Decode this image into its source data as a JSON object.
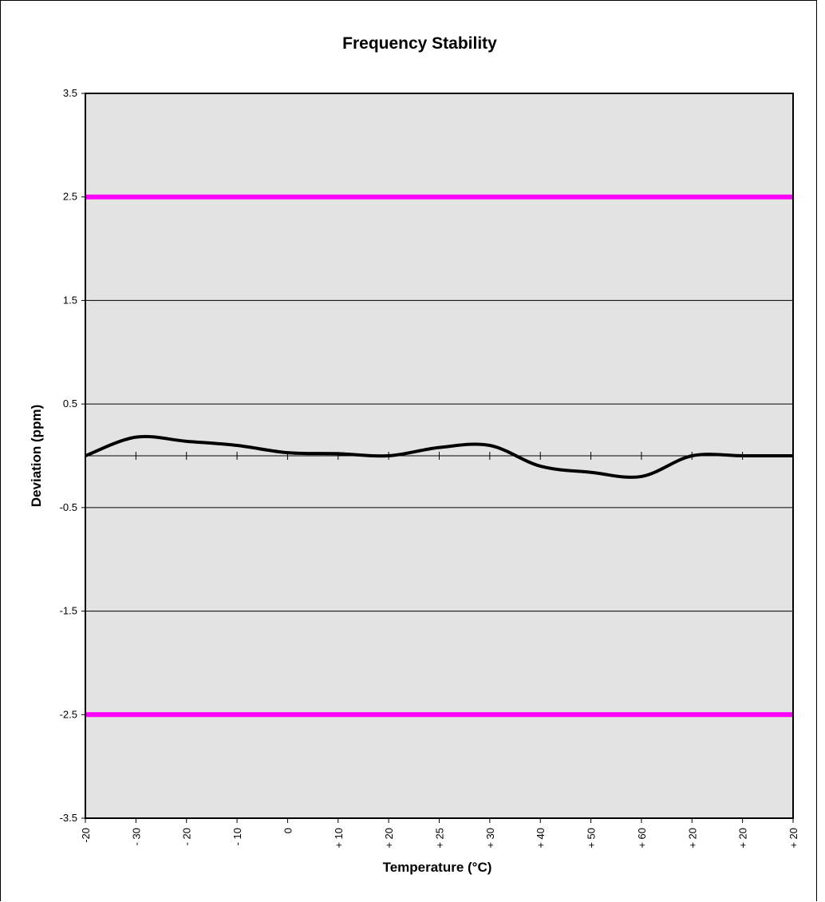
{
  "chart_data": {
    "type": "line",
    "title": "Frequency Stability",
    "xlabel": "Temperature (°C)",
    "ylabel": "Deviation (ppm)",
    "ylim": [
      -3.5,
      3.5
    ],
    "y_ticks": [
      3.5,
      2.5,
      1.5,
      0.5,
      -0.5,
      -1.5,
      -2.5,
      -3.5
    ],
    "y_tick_labels": [
      "3.5",
      "2.5",
      "1.5",
      "0.5",
      "-0.5",
      "-1.5",
      "-2.5",
      "-3.5"
    ],
    "categories": [
      "-20",
      "- 30",
      "- 20",
      "- 10",
      "0",
      "+ 10",
      "+ 20",
      "+ 25",
      "+ 30",
      "+ 40",
      "+ 50",
      "+ 60",
      "+ 20",
      "+ 20",
      "+ 20"
    ],
    "grid": true,
    "colors": {
      "plot_background": "#e3e3e3",
      "data_line": "#000000",
      "limit_line": "#ff00ff",
      "grid_line": "#000000"
    },
    "series": [
      {
        "values": [
          0.0,
          0.18,
          0.14,
          0.1,
          0.03,
          0.02,
          0.0,
          0.08,
          0.1,
          -0.1,
          -0.16,
          -0.2,
          0.0,
          0.0,
          0.0
        ],
        "color": "#000000"
      },
      {
        "values": [
          2.5,
          2.5,
          2.5,
          2.5,
          2.5,
          2.5,
          2.5,
          2.5,
          2.5,
          2.5,
          2.5,
          2.5,
          2.5,
          2.5,
          2.5
        ],
        "color": "#ff00ff"
      },
      {
        "values": [
          -2.5,
          -2.5,
          -2.5,
          -2.5,
          -2.5,
          -2.5,
          -2.5,
          -2.5,
          -2.5,
          -2.5,
          -2.5,
          -2.5,
          -2.5,
          -2.5,
          -2.5
        ],
        "color": "#ff00ff"
      }
    ]
  }
}
